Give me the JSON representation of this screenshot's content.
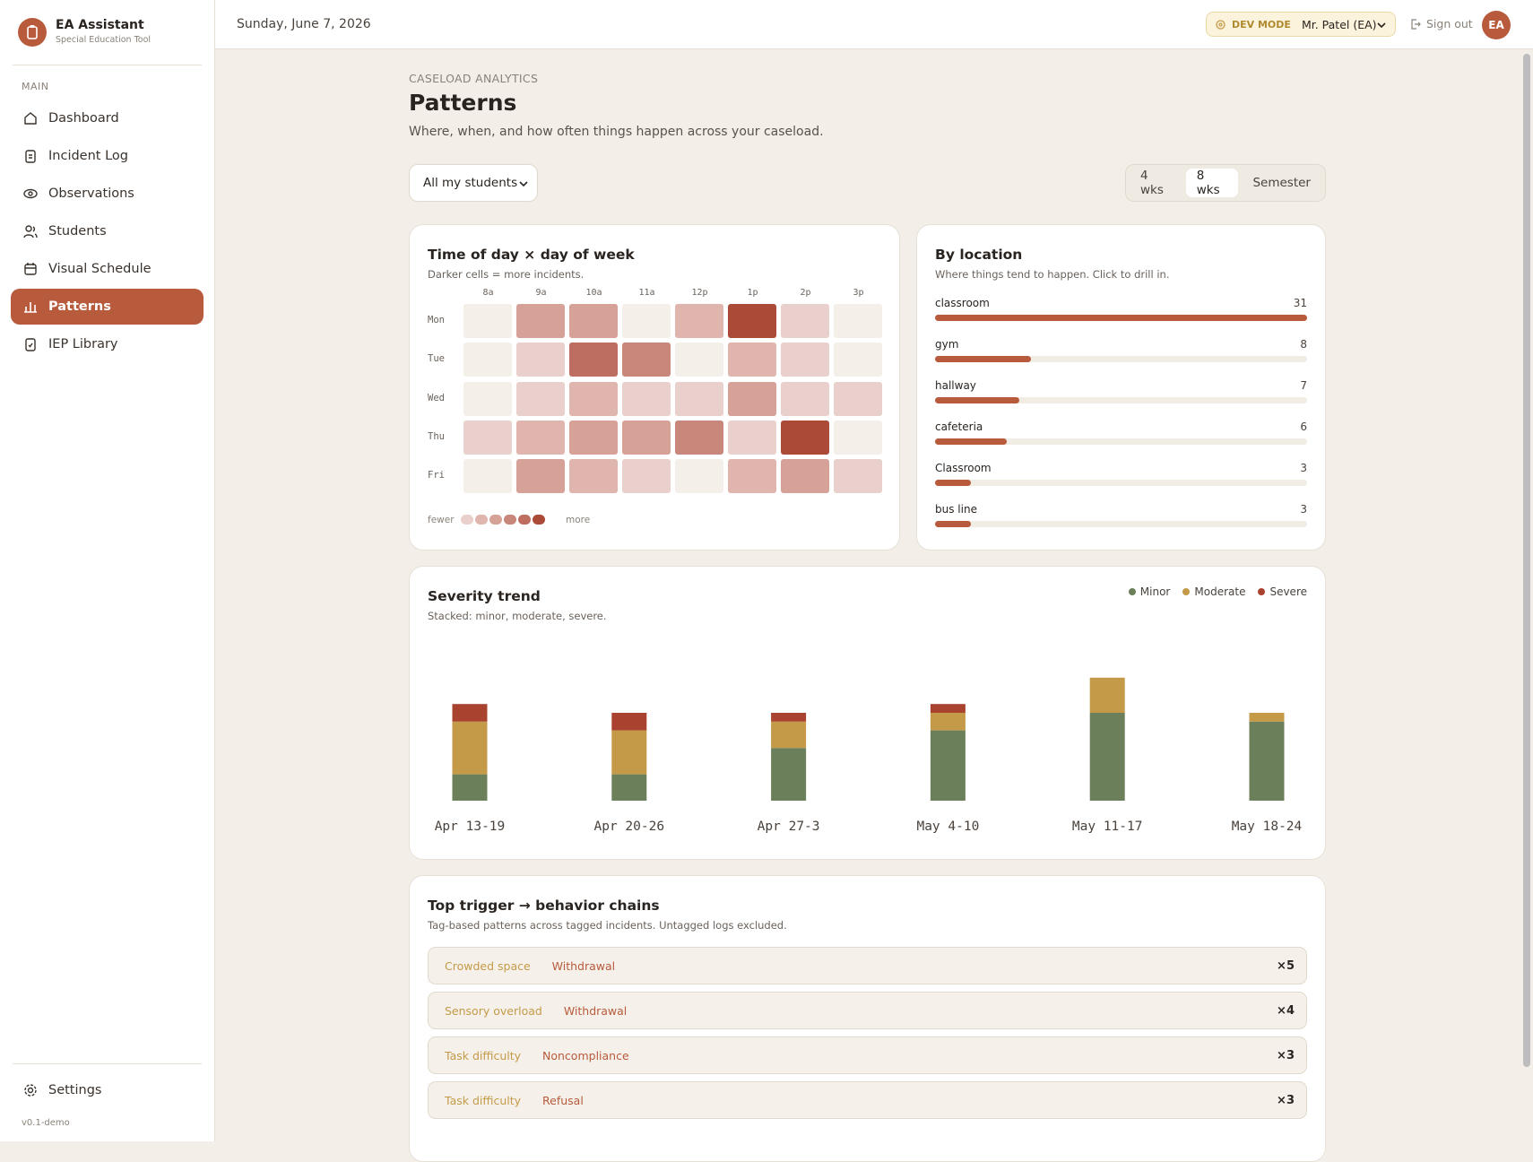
{
  "sidebar": {
    "brand": "EA Assistant",
    "tagline": "Special Education Tool",
    "section": "MAIN",
    "nav": [
      "Dashboard",
      "Incident Log",
      "Observations",
      "Students",
      "Visual Schedule",
      "Patterns",
      "IEP Library"
    ],
    "settings": "Settings",
    "version": "v0.1-demo"
  },
  "topbar": {
    "date": "Sunday, June 7, 2026",
    "dev_mode": "DEV MODE",
    "user": "Mr. Patel (EA)",
    "sign_out": "Sign out",
    "avatar": "EA"
  },
  "page": {
    "eyebrow": "CASELOAD ANALYTICS",
    "title": "Patterns",
    "subtitle": "Where, when, and how often things happen across your caseload."
  },
  "filters": {
    "student_select": "All my students",
    "ranges": [
      "4 wks",
      "8 wks",
      "Semester"
    ]
  },
  "heatmap": {
    "title": "Time of day × day of week",
    "subtitle": "Darker cells = more incidents.",
    "hours": [
      "8a",
      "9a",
      "10a",
      "11a",
      "12p",
      "1p",
      "2p",
      "3p"
    ],
    "days": [
      "Mon",
      "Tue",
      "Wed",
      "Thu",
      "Fri"
    ],
    "values": [
      [
        0,
        3,
        3,
        0,
        2,
        6,
        1,
        0
      ],
      [
        0,
        1,
        5,
        4,
        0,
        2,
        1,
        0
      ],
      [
        0,
        1,
        2,
        1,
        1,
        3,
        1,
        1
      ],
      [
        1,
        2,
        3,
        3,
        4,
        1,
        6,
        0
      ],
      [
        0,
        3,
        2,
        1,
        0,
        2,
        3,
        1
      ]
    ],
    "legend_low": "fewer",
    "legend_high": "more"
  },
  "location": {
    "title": "By location",
    "subtitle": "Where things tend to happen. Click to drill in.",
    "categories": [
      "classroom",
      "gym",
      "hallway",
      "cafeteria",
      "Classroom",
      "bus line"
    ],
    "values": [
      31,
      8,
      7,
      6,
      3,
      3
    ],
    "color": "#b85a3c"
  },
  "severity": {
    "title": "Severity trend",
    "subtitle": "Stacked: minor, moderate, severe.",
    "categories": [
      "Apr 13-19",
      "Apr 20-26",
      "Apr 27-3",
      "May 4-10",
      "May 11-17",
      "May 18-24"
    ],
    "series": [
      {
        "name": "Minor",
        "color": "#6b7f5a",
        "values": [
          3,
          3,
          6,
          8,
          10,
          9
        ]
      },
      {
        "name": "Moderate",
        "color": "#c49a48",
        "values": [
          6,
          5,
          3,
          2,
          4,
          1
        ]
      },
      {
        "name": "Severe",
        "color": "#a9432f",
        "values": [
          2,
          2,
          1,
          1,
          0,
          0
        ]
      }
    ]
  },
  "triggers": {
    "title": "Top trigger → behavior chains",
    "subtitle": "Tag-based patterns across tagged incidents. Untagged logs excluded.",
    "rows": [
      {
        "trigger": "Crowded space",
        "behavior": "Withdrawal",
        "count": "×5"
      },
      {
        "trigger": "Sensory overload",
        "behavior": "Withdrawal",
        "count": "×4"
      },
      {
        "trigger": "Task difficulty",
        "behavior": "Noncompliance",
        "count": "×3"
      },
      {
        "trigger": "Task difficulty",
        "behavior": "Refusal",
        "count": "×3"
      }
    ]
  }
}
